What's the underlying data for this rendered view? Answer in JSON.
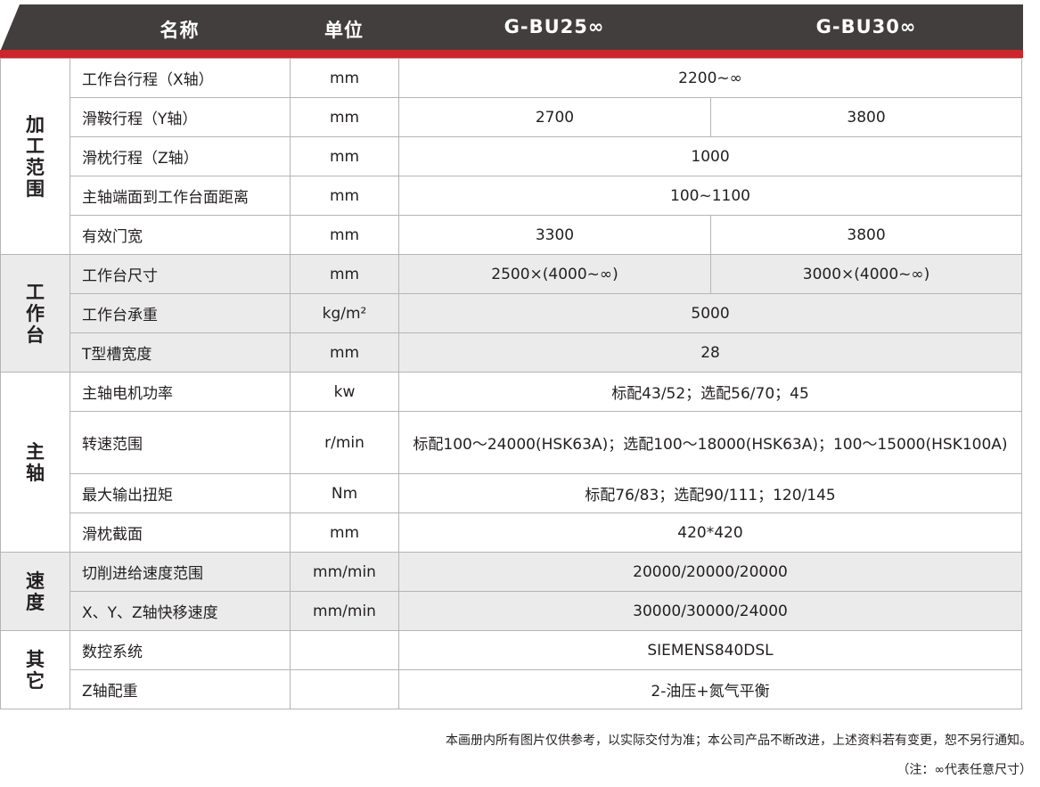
{
  "header": {
    "name": "名称",
    "unit": "单位",
    "model1": "G-BU25∞",
    "model2": "G-BU30∞"
  },
  "groups": [
    {
      "label": "加工范围",
      "shaded": false,
      "rows": [
        {
          "name": "工作台行程（X轴）",
          "unit": "mm",
          "values": [
            "2200~∞"
          ]
        },
        {
          "name": "滑鞍行程（Y轴）",
          "unit": "mm",
          "values": [
            "2700",
            "3800"
          ]
        },
        {
          "name": "滑枕行程（Z轴）",
          "unit": "mm",
          "values": [
            "1000"
          ]
        },
        {
          "name": "主轴端面到工作台面距离",
          "unit": "mm",
          "values": [
            "100~1100"
          ]
        },
        {
          "name": "有效门宽",
          "unit": "mm",
          "values": [
            "3300",
            "3800"
          ]
        }
      ]
    },
    {
      "label": "工作台",
      "shaded": true,
      "rows": [
        {
          "name": "工作台尺寸",
          "unit": "mm",
          "values": [
            "2500×(4000~∞)",
            "3000×(4000~∞)"
          ]
        },
        {
          "name": "工作台承重",
          "unit": "kg/m²",
          "values": [
            "5000"
          ]
        },
        {
          "name": "T型槽宽度",
          "unit": "mm",
          "values": [
            "28"
          ]
        }
      ]
    },
    {
      "label": "主轴",
      "shaded": false,
      "rows": [
        {
          "name": "主轴电机功率",
          "unit": "kw",
          "values": [
            "标配43/52；选配56/70；45"
          ]
        },
        {
          "name": "转速范围",
          "unit": "r/min",
          "tall": true,
          "values": [
            "标配100～24000(HSK63A)；选配100～18000(HSK63A)；100～15000(HSK100A)"
          ]
        },
        {
          "name": "最大输出扭矩",
          "unit": "Nm",
          "values": [
            "标配76/83；选配90/111；120/145"
          ]
        },
        {
          "name": "滑枕截面",
          "unit": "mm",
          "values": [
            "420*420"
          ]
        }
      ]
    },
    {
      "label": "速度",
      "shaded": true,
      "rows": [
        {
          "name": "切削进给速度范围",
          "unit": "mm/min",
          "values": [
            "20000/20000/20000"
          ]
        },
        {
          "name": "X、Y、Z轴快移速度",
          "unit": "mm/min",
          "values": [
            "30000/30000/24000"
          ]
        }
      ]
    },
    {
      "label": "其它",
      "shaded": false,
      "rows": [
        {
          "name": "数控系统",
          "unit": "",
          "values": [
            "SIEMENS840DSL"
          ]
        },
        {
          "name": "Z轴配重",
          "unit": "",
          "values": [
            "2-油压+氮气平衡"
          ]
        }
      ]
    }
  ],
  "notes": {
    "disclaimer": "本画册内所有图片仅供参考，以实际交付为准；本公司产品不断改进，上述资料若有变更，恕不另行通知。",
    "legend": "（注：∞代表任意尺寸）"
  },
  "colors": {
    "header_bg": "#423e3d",
    "accent_red": "#d2232a",
    "shaded_row": "#ebebeb"
  }
}
